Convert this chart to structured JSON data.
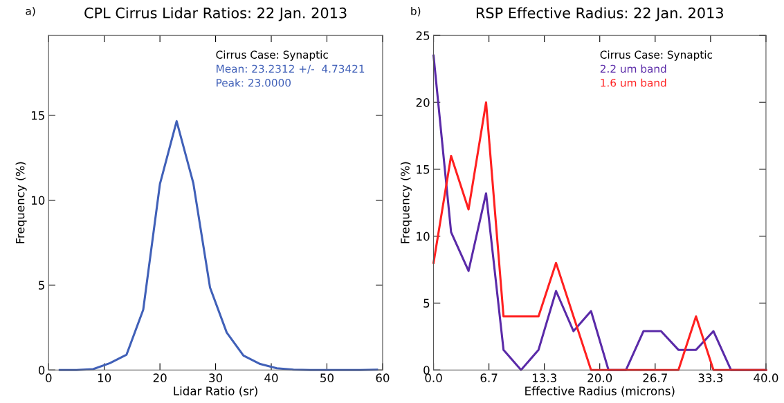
{
  "chart_data": [
    {
      "type": "line",
      "title": "CPL Cirrus Lidar Ratios: 22 Jan. 2013",
      "xlabel": "Lidar Ratio (sr)",
      "ylabel": "Frequency (%)",
      "annotations": [
        "a)",
        "Cirrus Case: Synaptic",
        "Mean: 23.2312 +/-  4.73421",
        "Peak: 23.0000"
      ],
      "x": [
        2,
        5,
        8,
        11,
        14,
        17,
        20,
        23,
        26,
        29,
        32,
        35,
        38,
        41,
        44,
        47,
        50,
        53,
        56,
        59
      ],
      "series": [
        {
          "color": "#4060b8",
          "values": [
            0,
            0,
            0.05,
            0.4,
            0.9,
            3.55,
            10.95,
            14.65,
            11.0,
            4.85,
            2.2,
            0.85,
            0.35,
            0.1,
            0.02,
            0,
            0,
            0,
            0,
            0.02
          ]
        }
      ],
      "xlim": [
        0,
        60
      ],
      "xticks": [
        0,
        10,
        20,
        30,
        40,
        50,
        60
      ],
      "ylim": [
        0,
        19.7
      ],
      "yticks": [
        0,
        5,
        10,
        15
      ],
      "grid": false,
      "line_style": "solid",
      "marker": "none"
    },
    {
      "type": "line",
      "title": "RSP Effective Radius: 22 Jan. 2013",
      "xlabel": "Effective Radius (microns)",
      "ylabel": "Frequency (%)",
      "annotations": [
        "b)",
        "Cirrus Case: Synaptic"
      ],
      "x": [
        0,
        2.11,
        4.21,
        6.32,
        8.42,
        10.53,
        12.63,
        14.74,
        16.84,
        18.95,
        21.05,
        23.16,
        25.26,
        27.37,
        29.47,
        31.58,
        33.68,
        35.79,
        37.89,
        40
      ],
      "series": [
        {
          "name": "2.2 um band",
          "color": "#5a2aa8",
          "values": [
            23.5,
            10.3,
            7.4,
            13.2,
            1.5,
            0,
            1.5,
            5.9,
            2.9,
            4.4,
            0,
            0,
            2.9,
            2.9,
            1.5,
            1.5,
            2.9,
            0,
            0,
            0
          ]
        },
        {
          "name": "1.6 um band",
          "color": "#ff2020",
          "values": [
            8,
            16,
            12,
            20,
            4,
            4,
            4,
            8,
            4,
            0,
            0,
            0,
            0,
            0,
            0,
            4,
            0,
            0,
            0,
            0
          ]
        }
      ],
      "xlim": [
        0,
        40
      ],
      "xticks": [
        {
          "value": 0,
          "label": "0.0"
        },
        {
          "value": 6.667,
          "label": "6.7"
        },
        {
          "value": 13.333,
          "label": "13.3"
        },
        {
          "value": 20,
          "label": "20.0"
        },
        {
          "value": 26.667,
          "label": "26.7"
        },
        {
          "value": 33.333,
          "label": "33.3"
        },
        {
          "value": 40,
          "label": "40.0"
        }
      ],
      "ylim": [
        0,
        25
      ],
      "yticks": [
        0,
        5,
        10,
        15,
        20,
        25
      ],
      "grid": false,
      "legend": "top right",
      "line_style": "solid",
      "marker": "none"
    }
  ]
}
